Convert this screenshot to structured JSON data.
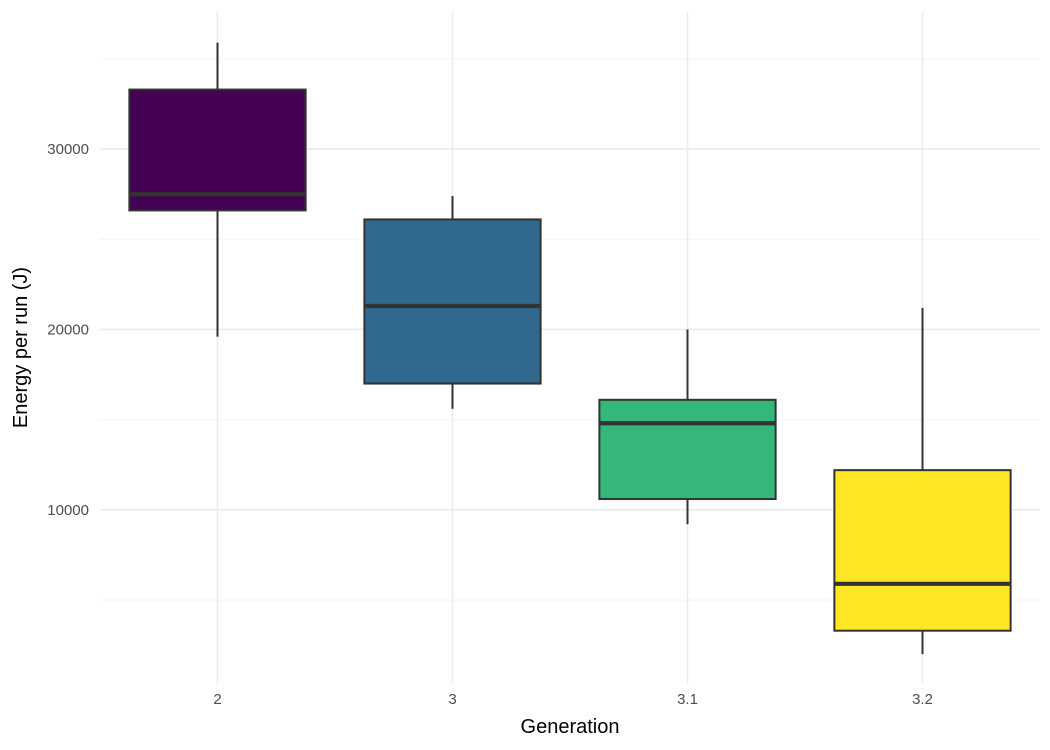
{
  "chart_data": {
    "type": "boxplot",
    "title": "",
    "xlabel": "Generation",
    "ylabel": "Energy per run (J)",
    "categories": [
      "2",
      "3",
      "3.1",
      "3.2"
    ],
    "boxes": [
      {
        "category": "2",
        "whisker_low": 19600,
        "q1": 26600,
        "median": 27500,
        "q3": 33300,
        "whisker_high": 35900,
        "color": "#440154"
      },
      {
        "category": "3",
        "whisker_low": 15600,
        "q1": 17000,
        "median": 21300,
        "q3": 26100,
        "whisker_high": 27400,
        "color": "#31688E"
      },
      {
        "category": "3.1",
        "whisker_low": 9200,
        "q1": 10600,
        "median": 14800,
        "q3": 16100,
        "whisker_high": 20000,
        "color": "#35B779"
      },
      {
        "category": "3.2",
        "whisker_low": 2000,
        "q1": 3300,
        "median": 5900,
        "q3": 12200,
        "whisker_high": 21200,
        "color": "#FDE725"
      }
    ],
    "yticks": [
      10000,
      20000,
      30000
    ],
    "ytick_labels": [
      "10000",
      "20000",
      "30000"
    ],
    "ylim": [
      400,
      37600
    ],
    "grid": true,
    "legend": "none"
  }
}
